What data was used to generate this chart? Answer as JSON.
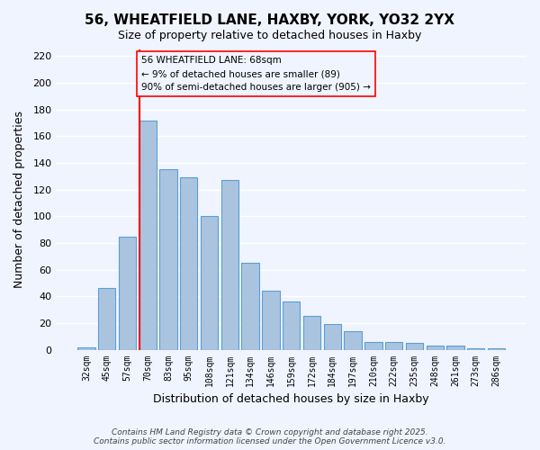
{
  "title_line1": "56, WHEATFIELD LANE, HAXBY, YORK, YO32 2YX",
  "title_line2": "Size of property relative to detached houses in Haxby",
  "xlabel": "Distribution of detached houses by size in Haxby",
  "ylabel": "Number of detached properties",
  "categories": [
    "32sqm",
    "45sqm",
    "57sqm",
    "70sqm",
    "83sqm",
    "95sqm",
    "108sqm",
    "121sqm",
    "134sqm",
    "146sqm",
    "159sqm",
    "172sqm",
    "184sqm",
    "197sqm",
    "210sqm",
    "222sqm",
    "235sqm",
    "248sqm",
    "261sqm",
    "273sqm",
    "286sqm"
  ],
  "values": [
    2,
    46,
    85,
    172,
    135,
    129,
    100,
    127,
    65,
    44,
    36,
    25,
    19,
    14,
    6,
    6,
    5,
    3,
    3,
    1,
    1
  ],
  "bar_color": "#aac4e0",
  "bar_edge_color": "#5a9fd4",
  "redline_index": 3,
  "annotation_title": "56 WHEATFIELD LANE: 68sqm",
  "annotation_line2": "← 9% of detached houses are smaller (89)",
  "annotation_line3": "90% of semi-detached houses are larger (905) →",
  "ylim": [
    0,
    225
  ],
  "yticks": [
    0,
    20,
    40,
    60,
    80,
    100,
    120,
    140,
    160,
    180,
    200,
    220
  ],
  "footer_line1": "Contains HM Land Registry data © Crown copyright and database right 2025.",
  "footer_line2": "Contains public sector information licensed under the Open Government Licence v3.0.",
  "background_color": "#f0f4ff"
}
